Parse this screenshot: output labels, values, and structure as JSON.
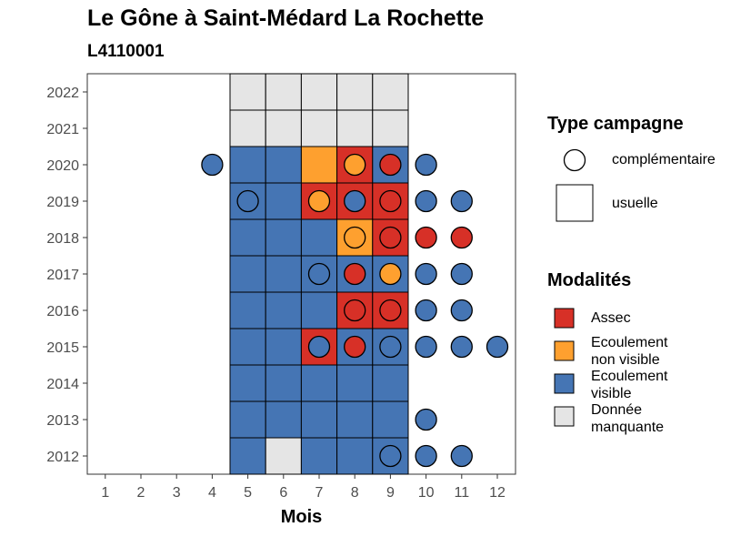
{
  "title": "Le Gône à Saint-Médard La Rochette",
  "subtitle": "L4110001",
  "chart_data": {
    "type": "heatmap",
    "xlabel": "Mois",
    "ylabel": "",
    "x_ticks": [
      "1",
      "2",
      "3",
      "4",
      "5",
      "6",
      "7",
      "8",
      "9",
      "10",
      "11",
      "12"
    ],
    "y_ticks": [
      "2012",
      "2013",
      "2014",
      "2015",
      "2016",
      "2017",
      "2018",
      "2019",
      "2020",
      "2021",
      "2022"
    ],
    "grid": false,
    "colors": {
      "Assec": "#D73027",
      "Ecoulement non visible": "#FEA02F",
      "Ecoulement visible": "#4575B4",
      "Donnée manquante": "#E5E5E5"
    },
    "usuelle": [
      {
        "year": 2012,
        "month": 5,
        "modalite": "Ecoulement visible"
      },
      {
        "year": 2012,
        "month": 6,
        "modalite": "Donnée manquante"
      },
      {
        "year": 2012,
        "month": 7,
        "modalite": "Ecoulement visible"
      },
      {
        "year": 2012,
        "month": 8,
        "modalite": "Ecoulement visible"
      },
      {
        "year": 2012,
        "month": 9,
        "modalite": "Ecoulement visible"
      },
      {
        "year": 2013,
        "month": 5,
        "modalite": "Ecoulement visible"
      },
      {
        "year": 2013,
        "month": 6,
        "modalite": "Ecoulement visible"
      },
      {
        "year": 2013,
        "month": 7,
        "modalite": "Ecoulement visible"
      },
      {
        "year": 2013,
        "month": 8,
        "modalite": "Ecoulement visible"
      },
      {
        "year": 2013,
        "month": 9,
        "modalite": "Ecoulement visible"
      },
      {
        "year": 2014,
        "month": 5,
        "modalite": "Ecoulement visible"
      },
      {
        "year": 2014,
        "month": 6,
        "modalite": "Ecoulement visible"
      },
      {
        "year": 2014,
        "month": 7,
        "modalite": "Ecoulement visible"
      },
      {
        "year": 2014,
        "month": 8,
        "modalite": "Ecoulement visible"
      },
      {
        "year": 2014,
        "month": 9,
        "modalite": "Ecoulement visible"
      },
      {
        "year": 2015,
        "month": 5,
        "modalite": "Ecoulement visible"
      },
      {
        "year": 2015,
        "month": 6,
        "modalite": "Ecoulement visible"
      },
      {
        "year": 2015,
        "month": 7,
        "modalite": "Assec"
      },
      {
        "year": 2015,
        "month": 8,
        "modalite": "Ecoulement visible"
      },
      {
        "year": 2015,
        "month": 9,
        "modalite": "Ecoulement visible"
      },
      {
        "year": 2016,
        "month": 5,
        "modalite": "Ecoulement visible"
      },
      {
        "year": 2016,
        "month": 6,
        "modalite": "Ecoulement visible"
      },
      {
        "year": 2016,
        "month": 7,
        "modalite": "Ecoulement visible"
      },
      {
        "year": 2016,
        "month": 8,
        "modalite": "Assec"
      },
      {
        "year": 2016,
        "month": 9,
        "modalite": "Assec"
      },
      {
        "year": 2017,
        "month": 5,
        "modalite": "Ecoulement visible"
      },
      {
        "year": 2017,
        "month": 6,
        "modalite": "Ecoulement visible"
      },
      {
        "year": 2017,
        "month": 7,
        "modalite": "Ecoulement visible"
      },
      {
        "year": 2017,
        "month": 8,
        "modalite": "Ecoulement visible"
      },
      {
        "year": 2017,
        "month": 9,
        "modalite": "Ecoulement visible"
      },
      {
        "year": 2018,
        "month": 5,
        "modalite": "Ecoulement visible"
      },
      {
        "year": 2018,
        "month": 6,
        "modalite": "Ecoulement visible"
      },
      {
        "year": 2018,
        "month": 7,
        "modalite": "Ecoulement visible"
      },
      {
        "year": 2018,
        "month": 8,
        "modalite": "Ecoulement non visible"
      },
      {
        "year": 2018,
        "month": 9,
        "modalite": "Assec"
      },
      {
        "year": 2019,
        "month": 5,
        "modalite": "Ecoulement visible"
      },
      {
        "year": 2019,
        "month": 6,
        "modalite": "Ecoulement visible"
      },
      {
        "year": 2019,
        "month": 7,
        "modalite": "Assec"
      },
      {
        "year": 2019,
        "month": 8,
        "modalite": "Assec"
      },
      {
        "year": 2019,
        "month": 9,
        "modalite": "Assec"
      },
      {
        "year": 2020,
        "month": 5,
        "modalite": "Ecoulement visible"
      },
      {
        "year": 2020,
        "month": 6,
        "modalite": "Ecoulement visible"
      },
      {
        "year": 2020,
        "month": 7,
        "modalite": "Ecoulement non visible"
      },
      {
        "year": 2020,
        "month": 8,
        "modalite": "Assec"
      },
      {
        "year": 2020,
        "month": 9,
        "modalite": "Ecoulement visible"
      },
      {
        "year": 2021,
        "month": 5,
        "modalite": "Donnée manquante"
      },
      {
        "year": 2021,
        "month": 6,
        "modalite": "Donnée manquante"
      },
      {
        "year": 2021,
        "month": 7,
        "modalite": "Donnée manquante"
      },
      {
        "year": 2021,
        "month": 8,
        "modalite": "Donnée manquante"
      },
      {
        "year": 2021,
        "month": 9,
        "modalite": "Donnée manquante"
      },
      {
        "year": 2022,
        "month": 5,
        "modalite": "Donnée manquante"
      },
      {
        "year": 2022,
        "month": 6,
        "modalite": "Donnée manquante"
      },
      {
        "year": 2022,
        "month": 7,
        "modalite": "Donnée manquante"
      },
      {
        "year": 2022,
        "month": 8,
        "modalite": "Donnée manquante"
      },
      {
        "year": 2022,
        "month": 9,
        "modalite": "Donnée manquante"
      }
    ],
    "complementaire": [
      {
        "year": 2012,
        "month": 9,
        "modalite": "Ecoulement visible"
      },
      {
        "year": 2012,
        "month": 10,
        "modalite": "Ecoulement visible"
      },
      {
        "year": 2012,
        "month": 11,
        "modalite": "Ecoulement visible"
      },
      {
        "year": 2013,
        "month": 10,
        "modalite": "Ecoulement visible"
      },
      {
        "year": 2015,
        "month": 7,
        "modalite": "Ecoulement visible"
      },
      {
        "year": 2015,
        "month": 8,
        "modalite": "Assec"
      },
      {
        "year": 2015,
        "month": 9,
        "modalite": "Ecoulement visible"
      },
      {
        "year": 2015,
        "month": 10,
        "modalite": "Ecoulement visible"
      },
      {
        "year": 2015,
        "month": 11,
        "modalite": "Ecoulement visible"
      },
      {
        "year": 2015,
        "month": 12,
        "modalite": "Ecoulement visible"
      },
      {
        "year": 2016,
        "month": 8,
        "modalite": "Assec"
      },
      {
        "year": 2016,
        "month": 9,
        "modalite": "Assec"
      },
      {
        "year": 2016,
        "month": 10,
        "modalite": "Ecoulement visible"
      },
      {
        "year": 2016,
        "month": 11,
        "modalite": "Ecoulement visible"
      },
      {
        "year": 2017,
        "month": 7,
        "modalite": "Ecoulement visible"
      },
      {
        "year": 2017,
        "month": 8,
        "modalite": "Assec"
      },
      {
        "year": 2017,
        "month": 9,
        "modalite": "Ecoulement non visible"
      },
      {
        "year": 2017,
        "month": 10,
        "modalite": "Ecoulement visible"
      },
      {
        "year": 2017,
        "month": 11,
        "modalite": "Ecoulement visible"
      },
      {
        "year": 2018,
        "month": 8,
        "modalite": "Ecoulement non visible"
      },
      {
        "year": 2018,
        "month": 9,
        "modalite": "Assec"
      },
      {
        "year": 2018,
        "month": 10,
        "modalite": "Assec"
      },
      {
        "year": 2018,
        "month": 11,
        "modalite": "Assec"
      },
      {
        "year": 2019,
        "month": 5,
        "modalite": "Ecoulement visible"
      },
      {
        "year": 2019,
        "month": 7,
        "modalite": "Ecoulement non visible"
      },
      {
        "year": 2019,
        "month": 8,
        "modalite": "Ecoulement visible"
      },
      {
        "year": 2019,
        "month": 9,
        "modalite": "Assec"
      },
      {
        "year": 2019,
        "month": 10,
        "modalite": "Ecoulement visible"
      },
      {
        "year": 2019,
        "month": 11,
        "modalite": "Ecoulement visible"
      },
      {
        "year": 2020,
        "month": 4,
        "modalite": "Ecoulement visible"
      },
      {
        "year": 2020,
        "month": 8,
        "modalite": "Ecoulement non visible"
      },
      {
        "year": 2020,
        "month": 9,
        "modalite": "Assec"
      },
      {
        "year": 2020,
        "month": 10,
        "modalite": "Ecoulement visible"
      }
    ],
    "legend_placement": "right"
  },
  "legend": {
    "type_title": "Type campagne",
    "type_items": [
      "complémentaire",
      "usuelle"
    ],
    "modalites_title": "Modalités",
    "modalites_items": [
      {
        "label": "Assec",
        "key": "Assec"
      },
      {
        "label": "Ecoulement\nnon visible",
        "key": "Ecoulement non visible"
      },
      {
        "label": "Ecoulement\nvisible",
        "key": "Ecoulement visible"
      },
      {
        "label": "Donnée\nmanquante",
        "key": "Donnée manquante"
      }
    ]
  }
}
